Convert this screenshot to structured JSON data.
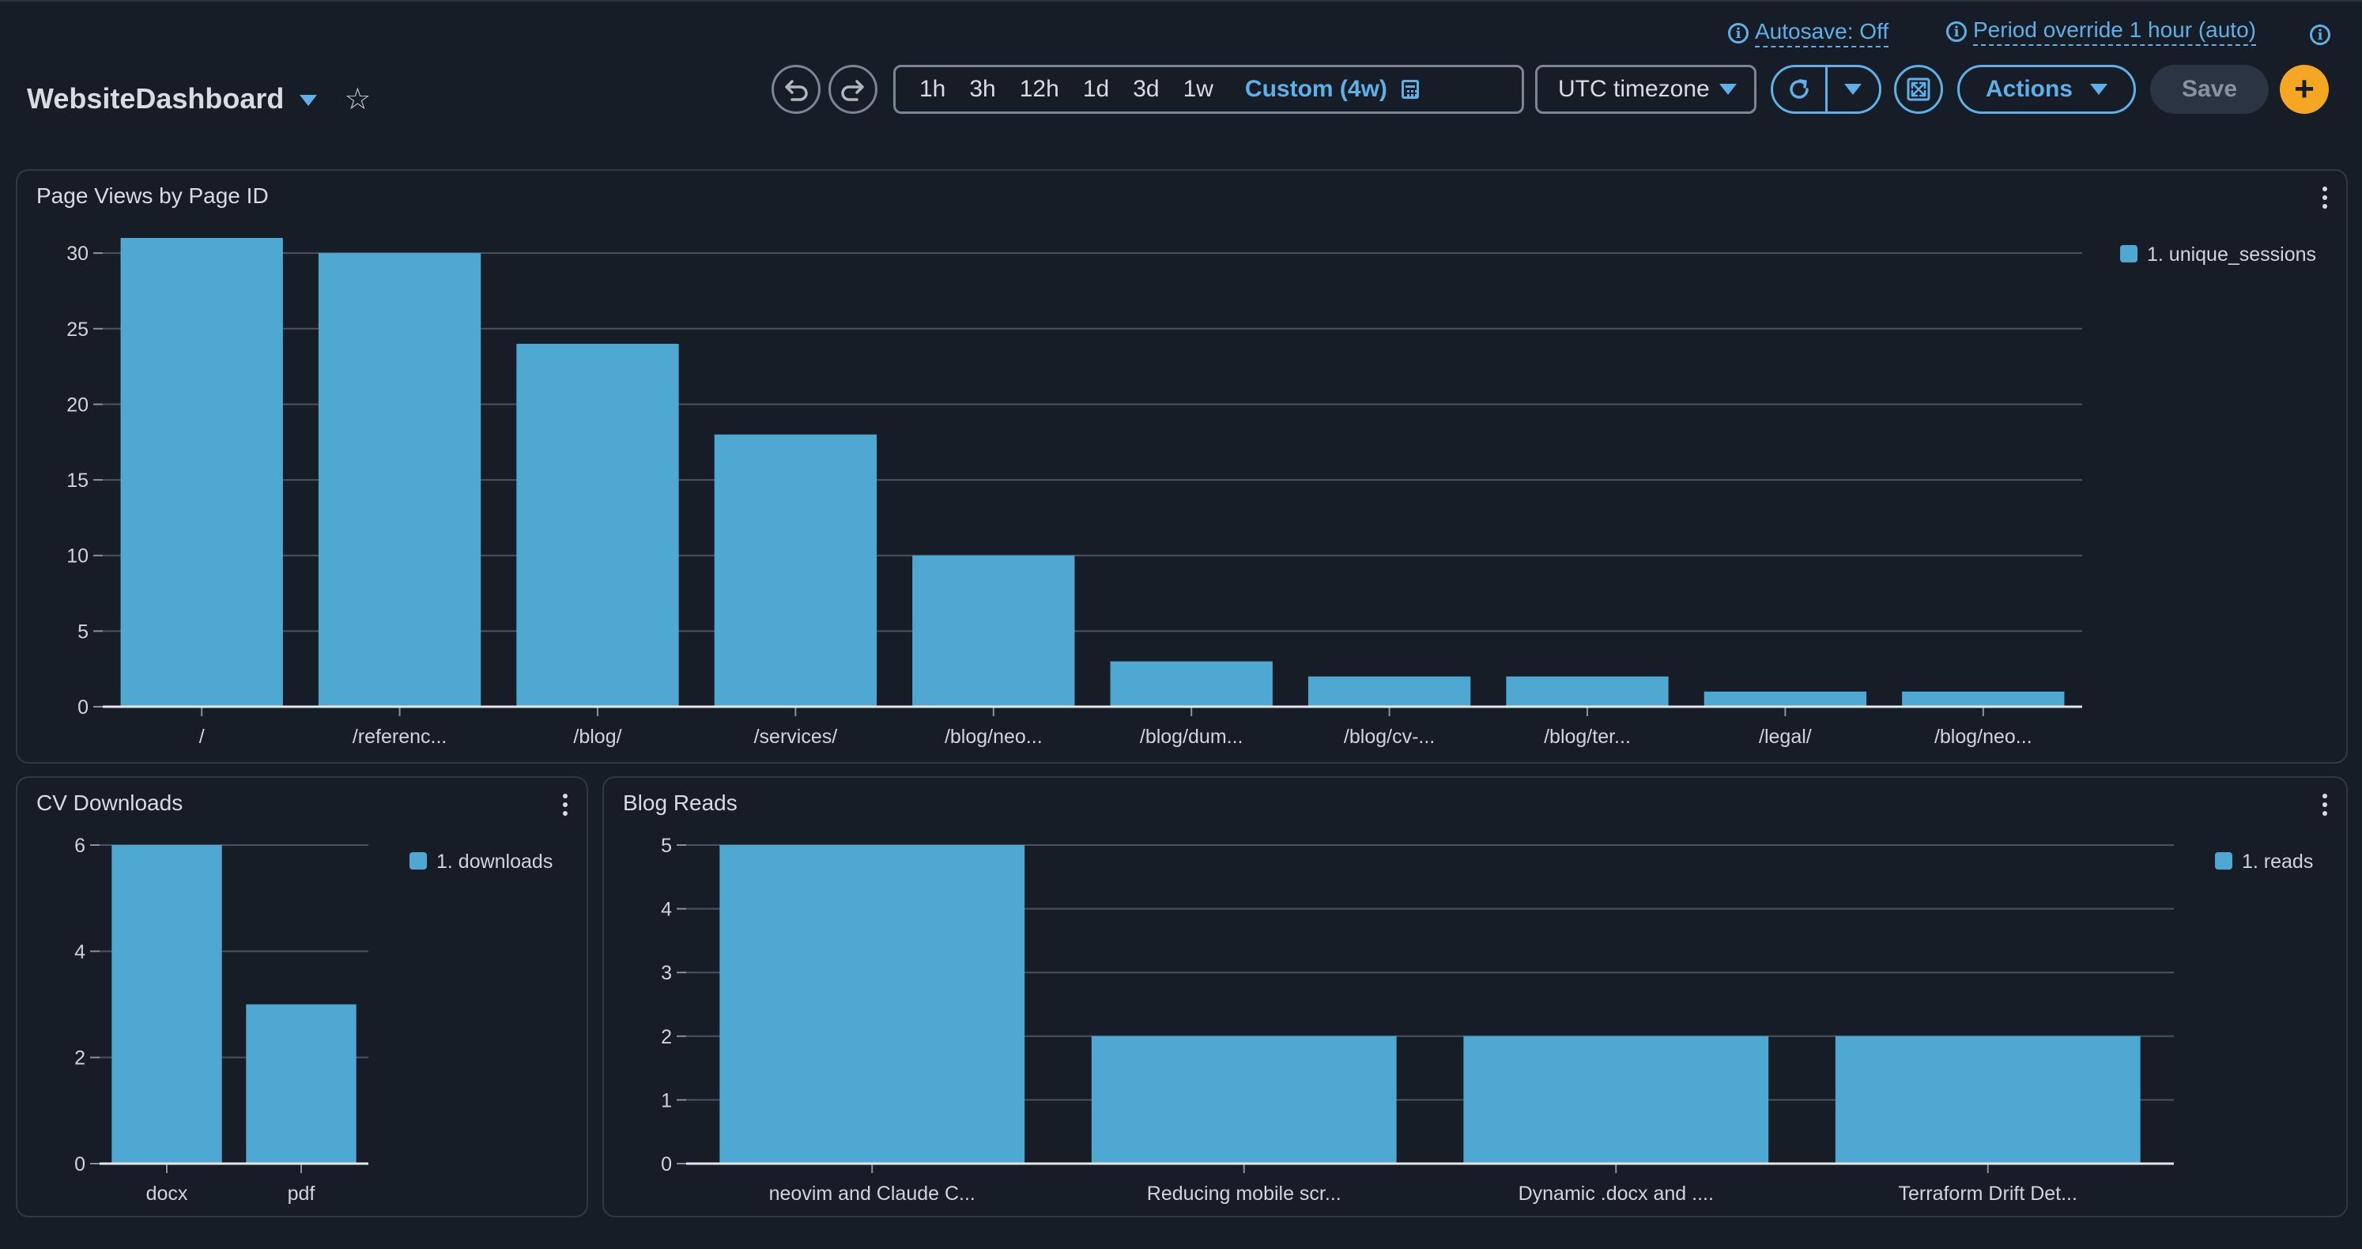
{
  "header": {
    "autosave_label": "Autosave: Off",
    "period_override_label": "Period override 1 hour (auto)",
    "title": "WebsiteDashboard"
  },
  "toolbar": {
    "time_ranges": [
      "1h",
      "3h",
      "12h",
      "1d",
      "3d",
      "1w"
    ],
    "custom_range": "Custom (4w)",
    "timezone": "UTC timezone",
    "actions_label": "Actions",
    "save_label": "Save",
    "add_label": "+"
  },
  "colors": {
    "accent": "#5fb0e8",
    "bar": "#4fa8d2",
    "add": "#f5a623",
    "background": "#161d26"
  },
  "panels": {
    "page_views": {
      "title": "Page Views by Page ID",
      "chart_data": {
        "type": "bar",
        "categories": [
          "/",
          "/referenc...",
          "/blog/",
          "/services/",
          "/blog/neo...",
          "/blog/dum...",
          "/blog/cv-...",
          "/blog/ter...",
          "/legal/",
          "/blog/neo..."
        ],
        "series": [
          {
            "name": "1. unique_sessions",
            "values": [
              31,
              30,
              24,
              18,
              10,
              3,
              2,
              2,
              1,
              1
            ]
          }
        ],
        "yticks": [
          0,
          5,
          10,
          15,
          20,
          25,
          30
        ],
        "ylim": [
          0,
          31
        ],
        "grid": true,
        "legend": "right"
      }
    },
    "cv_downloads": {
      "title": "CV Downloads",
      "chart_data": {
        "type": "bar",
        "categories": [
          "docx",
          "pdf"
        ],
        "series": [
          {
            "name": "1. downloads",
            "values": [
              6,
              3
            ]
          }
        ],
        "yticks": [
          0,
          2,
          4,
          6
        ],
        "ylim": [
          0,
          6
        ],
        "grid": true,
        "legend": "right"
      }
    },
    "blog_reads": {
      "title": "Blog Reads",
      "chart_data": {
        "type": "bar",
        "categories": [
          "neovim and Claude C...",
          "Reducing mobile scr...",
          "Dynamic .docx and ....",
          "Terraform Drift Det..."
        ],
        "series": [
          {
            "name": "1. reads",
            "values": [
              5,
              2,
              2,
              2
            ]
          }
        ],
        "yticks": [
          0,
          1,
          2,
          3,
          4,
          5
        ],
        "ylim": [
          0,
          5
        ],
        "grid": true,
        "legend": "right"
      }
    }
  }
}
